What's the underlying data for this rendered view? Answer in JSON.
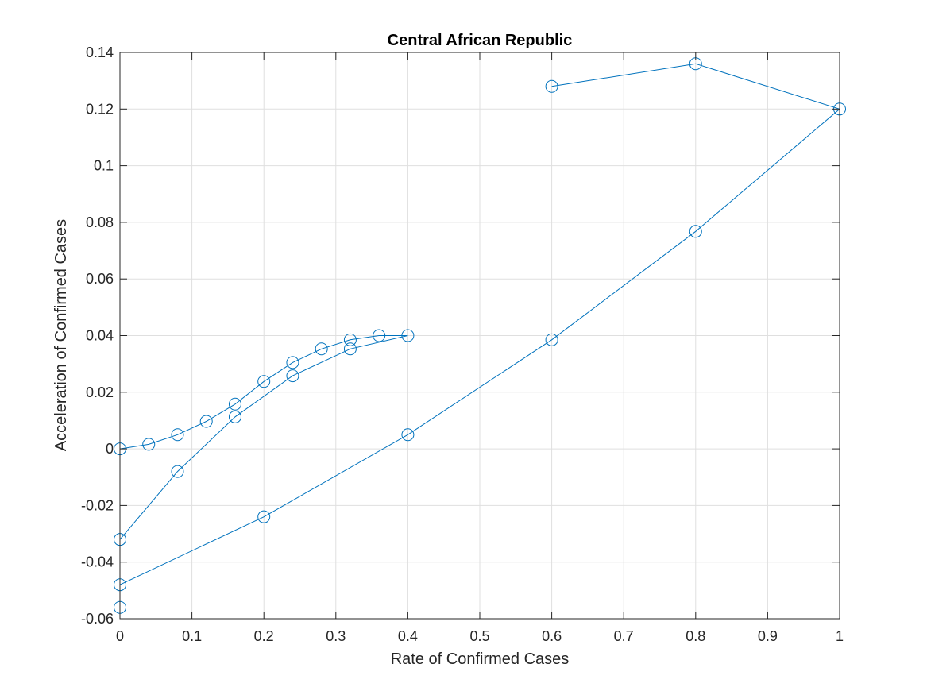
{
  "chart_data": {
    "type": "line",
    "title": "Central African Republic",
    "xlabel": "Rate of Confirmed Cases",
    "ylabel": "Acceleration of Confirmed Cases",
    "xlim": [
      0,
      1
    ],
    "ylim": [
      -0.06,
      0.14
    ],
    "xticks": [
      0,
      0.1,
      0.2,
      0.3,
      0.4,
      0.5,
      0.6,
      0.7,
      0.8,
      0.9,
      1
    ],
    "xtick_labels": [
      "0",
      "0.1",
      "0.2",
      "0.3",
      "0.4",
      "0.5",
      "0.6",
      "0.7",
      "0.8",
      "0.9",
      "1"
    ],
    "yticks": [
      -0.06,
      -0.04,
      -0.02,
      0,
      0.02,
      0.04,
      0.06,
      0.08,
      0.1,
      0.12,
      0.14
    ],
    "ytick_labels": [
      "-0.06",
      "-0.04",
      "-0.02",
      "0",
      "0.02",
      "0.04",
      "0.06",
      "0.08",
      "0.1",
      "0.12",
      "0.14"
    ],
    "grid": true,
    "marker": "circle",
    "color": "#0072BD",
    "series": [
      {
        "x": [
          0,
          0.04,
          0.08,
          0.12,
          0.16,
          0.2,
          0.24,
          0.28,
          0.32,
          0.36,
          0.4,
          0.32,
          0.24,
          0.16,
          0.08,
          0,
          0,
          0,
          0.2,
          0.4,
          0.6,
          0.8,
          1,
          0.8,
          0.6
        ],
        "y": [
          0,
          0.0016,
          0.005,
          0.0097,
          0.0158,
          0.0238,
          0.0305,
          0.0353,
          0.0385,
          0.04,
          0.04,
          0.0353,
          0.0258,
          0.0113,
          -0.008,
          -0.032,
          -0.056,
          -0.048,
          -0.024,
          0.005,
          0.0385,
          0.0768,
          0.12,
          0.136,
          0.128
        ]
      }
    ]
  }
}
